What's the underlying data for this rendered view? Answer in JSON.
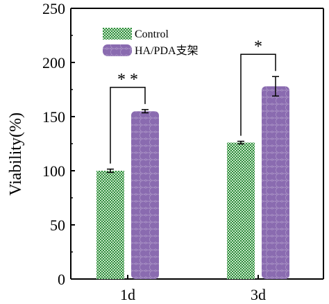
{
  "chart_data": {
    "type": "bar",
    "categories": [
      "1d",
      "3d"
    ],
    "series": [
      {
        "name": "Control",
        "values": [
          100,
          126
        ],
        "errors": [
          1.5,
          1.2
        ],
        "color": "#2e8b3c",
        "fill": "checkered"
      },
      {
        "name": "HA/PDA支架",
        "values": [
          155,
          178
        ],
        "errors": [
          1.5,
          9
        ],
        "color": "#8a6bb0",
        "fill": "scalloped"
      }
    ],
    "ylabel": "Viability(%)",
    "xlabel": "",
    "title": "",
    "ylim": [
      0,
      250
    ],
    "yticks": [
      0,
      50,
      100,
      150,
      200,
      250
    ],
    "grid": false,
    "legend_position": "top-left",
    "significance": [
      {
        "category": "1d",
        "label": "* *"
      },
      {
        "category": "3d",
        "label": "*"
      }
    ]
  }
}
